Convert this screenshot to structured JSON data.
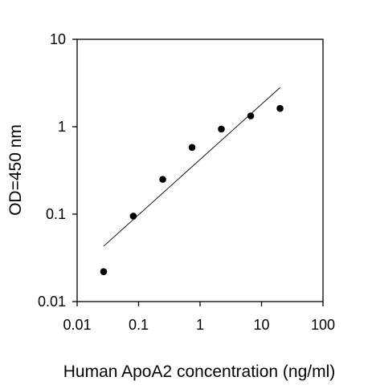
{
  "chart_data": {
    "type": "scatter",
    "title": "",
    "xlabel": "Human ApoA2 concentration (ng/ml)",
    "ylabel": "OD=450 nm",
    "xscale": "log",
    "yscale": "log",
    "xlim": [
      0.01,
      100
    ],
    "ylim": [
      0.01,
      10
    ],
    "x_ticks": [
      0.01,
      0.1,
      1,
      10,
      100
    ],
    "x_tick_labels": [
      "0.01",
      "0.1",
      "1",
      "10",
      "100"
    ],
    "y_ticks": [
      0.01,
      0.1,
      1,
      10
    ],
    "y_tick_labels": [
      "0.01",
      "0.1",
      "1",
      "10"
    ],
    "grid": false,
    "legend": "none",
    "series": [
      {
        "points": [
          {
            "x": 0.027,
            "y": 0.022
          },
          {
            "x": 0.082,
            "y": 0.095
          },
          {
            "x": 0.247,
            "y": 0.25
          },
          {
            "x": 0.741,
            "y": 0.58
          },
          {
            "x": 2.22,
            "y": 0.94
          },
          {
            "x": 6.67,
            "y": 1.33
          },
          {
            "x": 20,
            "y": 1.62
          }
        ]
      }
    ],
    "trend_line": {
      "x": [
        0.027,
        20
      ],
      "y": [
        0.043,
        2.8
      ]
    },
    "colors": {
      "marker": "#000000",
      "line": "#000000",
      "axis": "#000000",
      "background": "#ffffff"
    }
  }
}
